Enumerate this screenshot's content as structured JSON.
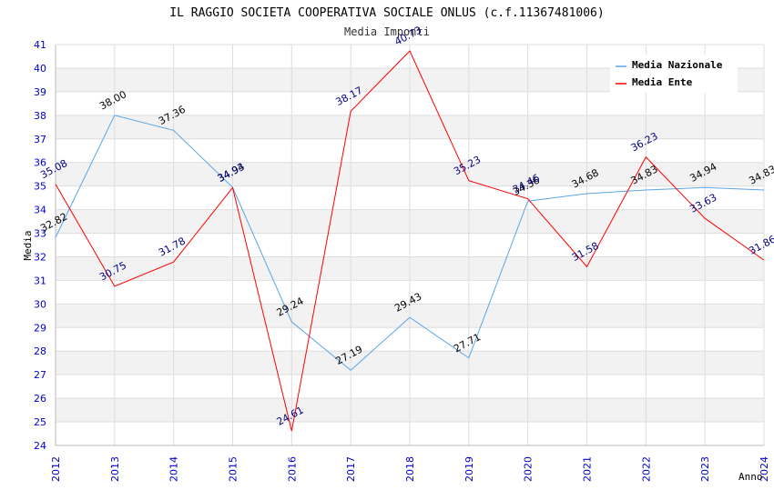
{
  "chart_data": {
    "type": "line",
    "title": "IL RAGGIO SOCIETA COOPERATIVA SOCIALE ONLUS (c.f.11367481006)",
    "subtitle": "Media Imponti",
    "xlabel": "Anno",
    "ylabel": "Media",
    "ylim": [
      24,
      41
    ],
    "grid": true,
    "legend_position": "top-right",
    "categories": [
      "2012",
      "2013",
      "2014",
      "2015",
      "2016",
      "2017",
      "2018",
      "2019",
      "2020",
      "2021",
      "2022",
      "2023",
      "2024"
    ],
    "series": [
      {
        "name": "Media Nazionale",
        "color": "#5aa5e6",
        "values": [
          32.82,
          38.0,
          37.36,
          34.94,
          29.24,
          27.19,
          29.43,
          27.71,
          34.36,
          34.68,
          34.83,
          34.94,
          34.83
        ],
        "labels": [
          "32.82",
          "38.00",
          "37.36",
          "34.94",
          "29.24",
          "27.19",
          "29.43",
          "27.71",
          "34.36",
          "34.68",
          "34.83",
          "34.94",
          "34.83"
        ]
      },
      {
        "name": "Media Ente",
        "color": "#ff0000",
        "values": [
          35.08,
          30.75,
          31.78,
          34.93,
          24.61,
          38.17,
          40.73,
          35.23,
          34.46,
          31.58,
          36.23,
          33.63,
          31.86
        ],
        "labels": [
          "35.08",
          "30.75",
          "31.78",
          "34.93",
          "24.61",
          "38.17",
          "40.73",
          "35.23",
          "34.46",
          "31.58",
          "36.23",
          "33.63",
          "31.86"
        ]
      }
    ]
  }
}
